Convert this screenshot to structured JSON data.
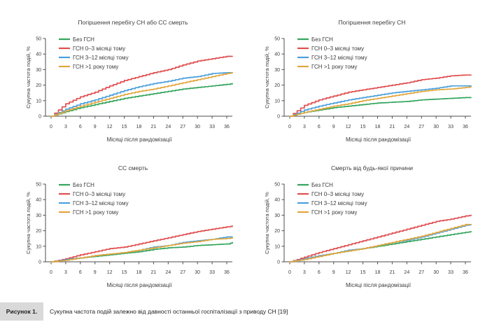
{
  "caption": {
    "label": "Рисунок 1.",
    "text": "Сукупна частота подій залежно від давності останньої госпіталізації з приводу СН [19]"
  },
  "colors": {
    "no_ahf_green": "#33A55D",
    "ahf_0_3_red": "#E04E50",
    "ahf_3_12_blue": "#4A9FDC",
    "ahf_gt1y_orange": "#E2A63D",
    "axis": "#4D4D4D",
    "caption_band": "#D9D9D9"
  },
  "chart_data": [
    {
      "type": "line",
      "title": "Погіршення перебігу СН або СС смерть",
      "xlabel": "Місяці після рандомізації",
      "ylabel": "Сукупна частота подій, %",
      "xlim": [
        0,
        37.5
      ],
      "ylim": [
        0,
        50
      ],
      "xticks": [
        0,
        3,
        6,
        9,
        12,
        15,
        18,
        21,
        24,
        27,
        30,
        33,
        36
      ],
      "yticks": [
        0,
        10,
        20,
        30,
        40,
        50
      ],
      "grid": false,
      "legend_position": "top-left",
      "x": [
        0,
        3,
        6,
        9,
        12,
        15,
        18,
        21,
        24,
        27,
        30,
        33,
        36,
        37.5
      ],
      "series": [
        {
          "name": "Без ГСН",
          "color": "#33A55D",
          "values": [
            0,
            3,
            5.5,
            7.5,
            9.5,
            11.5,
            13,
            14.5,
            16,
            17.5,
            18.5,
            19.5,
            20.5,
            21
          ]
        },
        {
          "name": "ГСН 0–3 місяці тому",
          "color": "#E04E50",
          "values": [
            0,
            8,
            12.5,
            15.5,
            19.5,
            23,
            25.5,
            28,
            30,
            33,
            35.5,
            37,
            38.5,
            38.5
          ]
        },
        {
          "name": "ГСН 3–12 місяці тому",
          "color": "#4A9FDC",
          "values": [
            0,
            4.5,
            8,
            10.5,
            13.5,
            16.5,
            19,
            21,
            22.5,
            24.5,
            25.5,
            27.5,
            28,
            28
          ]
        },
        {
          "name": "ГСН >1 року тому",
          "color": "#E2A63D",
          "values": [
            0,
            3.5,
            6.5,
            9,
            11.5,
            14,
            16,
            17.5,
            19.5,
            21.5,
            23.5,
            25.5,
            27.5,
            28
          ]
        }
      ]
    },
    {
      "type": "line",
      "title": "Погіршення перебігу СН",
      "xlabel": "Місяці після рандомізації",
      "ylabel": "Сукупна частота подій, %",
      "xlim": [
        0,
        37.5
      ],
      "ylim": [
        0,
        50
      ],
      "xticks": [
        0,
        3,
        6,
        9,
        12,
        15,
        18,
        21,
        24,
        27,
        30,
        33,
        36
      ],
      "yticks": [
        0,
        10,
        20,
        30,
        40,
        50
      ],
      "grid": false,
      "legend_position": "top-left",
      "x": [
        0,
        3,
        6,
        9,
        12,
        15,
        18,
        21,
        24,
        27,
        30,
        33,
        36,
        37.5
      ],
      "series": [
        {
          "name": "Без ГСН",
          "color": "#33A55D",
          "values": [
            0,
            2.5,
            4,
            5.5,
            6.5,
            7.5,
            8.5,
            9,
            9.5,
            10.5,
            11,
            11.5,
            12,
            12
          ]
        },
        {
          "name": "ГСН 0–3 місяці тому",
          "color": "#E04E50",
          "values": [
            0,
            7,
            10.5,
            13,
            15.5,
            17,
            18.5,
            20,
            21.5,
            23.5,
            24.5,
            26,
            26.5,
            26.5
          ]
        },
        {
          "name": "ГСН 3–12 місяці тому",
          "color": "#4A9FDC",
          "values": [
            0,
            4,
            6.5,
            8.5,
            10.5,
            12,
            13.5,
            15,
            16,
            17,
            18,
            19.5,
            19.5,
            19.5
          ]
        },
        {
          "name": "ГСН >1 року тому",
          "color": "#E2A63D",
          "values": [
            0,
            2.5,
            4.5,
            6.5,
            8,
            10,
            11.5,
            13,
            14.5,
            16,
            17,
            17.5,
            18.5,
            19
          ]
        }
      ]
    },
    {
      "type": "line",
      "title": "СС смерть",
      "xlabel": "Місяці після рандомізації",
      "ylabel": "Сукупна частота подій, %",
      "xlim": [
        0,
        37.5
      ],
      "ylim": [
        0,
        50
      ],
      "xticks": [
        0,
        3,
        6,
        9,
        12,
        15,
        18,
        21,
        24,
        27,
        30,
        33,
        36
      ],
      "yticks": [
        0,
        10,
        20,
        30,
        40,
        50
      ],
      "grid": false,
      "legend_position": "top-left",
      "x": [
        0,
        3,
        6,
        9,
        12,
        15,
        18,
        21,
        24,
        27,
        30,
        33,
        36,
        37.5
      ],
      "series": [
        {
          "name": "Без ГСН",
          "color": "#33A55D",
          "values": [
            0,
            1.5,
            2.5,
            3.5,
            4.5,
            5.5,
            6.5,
            8,
            9,
            9.5,
            10.5,
            11,
            11.5,
            12.5
          ]
        },
        {
          "name": "ГСН 0–3 місяці тому",
          "color": "#E04E50",
          "values": [
            0,
            2,
            4.5,
            6.5,
            8.5,
            9.5,
            11.5,
            13.5,
            15.5,
            17.5,
            19.5,
            21,
            22.5,
            23
          ]
        },
        {
          "name": "ГСН 3–12 місяці тому",
          "color": "#4A9FDC",
          "values": [
            0,
            1.5,
            2.5,
            4,
            5,
            6,
            7.5,
            9.5,
            10.5,
            12.5,
            13.5,
            14.5,
            16,
            16
          ]
        },
        {
          "name": "ГСН >1 року тому",
          "color": "#E2A63D",
          "values": [
            0,
            1,
            2.5,
            4,
            5,
            6,
            7.5,
            9,
            10.5,
            12,
            13,
            14.5,
            15,
            15.5
          ]
        }
      ]
    },
    {
      "type": "line",
      "title": "Смерть від будь-якої причини",
      "xlabel": "Місяці після рандомізації",
      "ylabel": "Сукупна частота подій, %",
      "xlim": [
        0,
        37.5
      ],
      "ylim": [
        0,
        50
      ],
      "xticks": [
        0,
        3,
        6,
        9,
        12,
        15,
        18,
        21,
        24,
        27,
        30,
        33,
        36
      ],
      "yticks": [
        0,
        10,
        20,
        30,
        40,
        50
      ],
      "grid": false,
      "legend_position": "top-left",
      "x": [
        0,
        3,
        6,
        9,
        12,
        15,
        18,
        21,
        24,
        27,
        30,
        33,
        36,
        37.5
      ],
      "series": [
        {
          "name": "Без ГСН",
          "color": "#33A55D",
          "values": [
            0,
            2,
            3.5,
            5.5,
            7,
            8.5,
            10,
            11.5,
            13,
            14.5,
            16,
            17.5,
            19,
            19.5
          ]
        },
        {
          "name": "ГСН 0–3 місяці тому",
          "color": "#E04E50",
          "values": [
            0,
            3,
            6,
            8.5,
            11,
            13.5,
            16,
            18.5,
            21,
            23.5,
            26,
            27.5,
            29.5,
            30
          ]
        },
        {
          "name": "ГСН 3–12 місяці тому",
          "color": "#4A9FDC",
          "values": [
            0,
            2,
            4,
            5.5,
            7.5,
            8.5,
            10.5,
            12.5,
            14,
            16,
            18.5,
            21,
            23.5,
            24
          ]
        },
        {
          "name": "ГСН >1 року тому",
          "color": "#E2A63D",
          "values": [
            0,
            1.5,
            3.5,
            5.5,
            7,
            8.5,
            10.5,
            12.5,
            14.5,
            16.5,
            19,
            21.5,
            24,
            24
          ]
        }
      ]
    }
  ]
}
